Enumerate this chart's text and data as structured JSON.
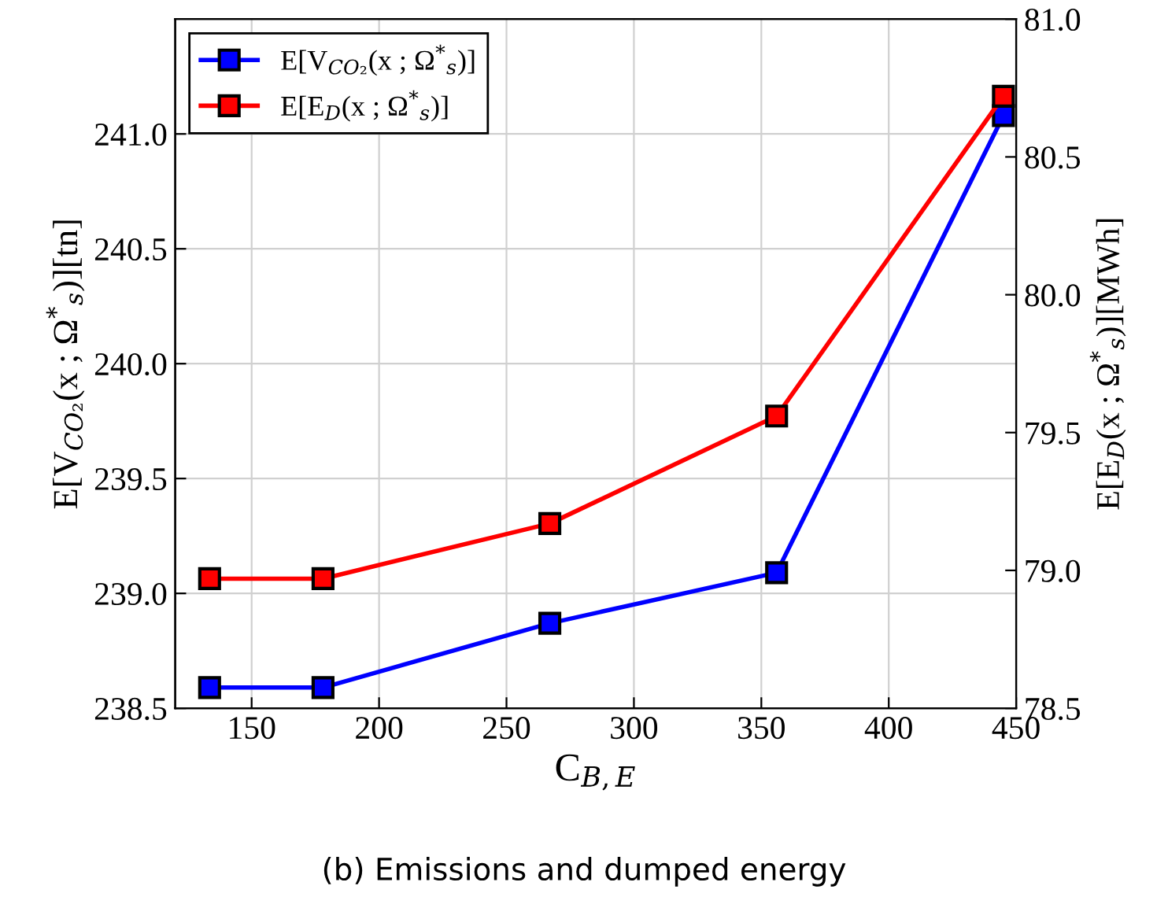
{
  "chart_data": {
    "type": "line",
    "xlabel": "C$_{B,E}$",
    "ylabel": "E[V$_{CO₂}$(x ; Ω$^{*}$$_{s}$)][tn]",
    "y2label": "E[E$_{D}$(x ; Ω$^{*}$$_{s}$)][MWh]",
    "x": [
      133.5,
      178,
      267,
      356,
      445
    ],
    "series": [
      {
        "name": "E[V$_{CO₂}$(x ; Ω$^{*}$$_{s}$)]",
        "color": "#0000ff",
        "values": [
          238.59,
          238.59,
          238.87,
          239.09,
          241.08
        ]
      },
      {
        "name": "E[E$_{D}$(x ; Ω$^{*}$$_{s}$)]",
        "color": "#ff0000",
        "axis": "y2",
        "values": [
          78.97,
          78.97,
          79.17,
          79.56,
          80.72
        ]
      }
    ],
    "xlim": [
      120,
      450
    ],
    "xticks": [
      150,
      200,
      250,
      300,
      350,
      400,
      450
    ],
    "ylim": [
      238.5,
      241.5
    ],
    "yticks": [
      {
        "value": 238.5,
        "label": "238.5"
      },
      {
        "value": 239.0,
        "label": "239.0"
      },
      {
        "value": 239.5,
        "label": "239.5"
      },
      {
        "value": 240.0,
        "label": "240.0"
      },
      {
        "value": 240.5,
        "label": "240.5"
      },
      {
        "value": 241.0,
        "label": "241.0"
      }
    ],
    "y2lim": [
      78.5,
      81.0
    ],
    "y2ticks": [
      {
        "value": 78.5,
        "label": "78.5"
      },
      {
        "value": 79.0,
        "label": "79.0"
      },
      {
        "value": 79.5,
        "label": "79.5"
      },
      {
        "value": 80.0,
        "label": "80.0"
      },
      {
        "value": 80.5,
        "label": "80.5"
      },
      {
        "value": 81.0,
        "label": "81.0"
      }
    ],
    "grid": true,
    "legend": "top left",
    "marker": "square",
    "line_style": "solid",
    "annotations": [
      "(b) Emissions and dumped energy"
    ]
  }
}
